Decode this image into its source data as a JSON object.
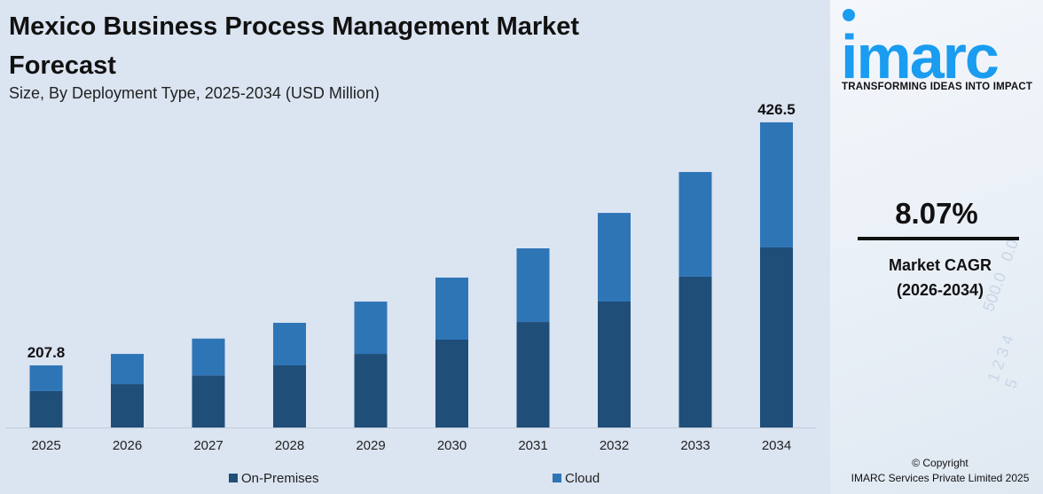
{
  "header": {
    "title": "Mexico Business Process Management Market Forecast",
    "subtitle": "Size, By Deployment Type, 2025-2034 (USD Million)"
  },
  "brand": {
    "logo_text": "imarc",
    "tagline": "TRANSFORMING IDEAS INTO IMPACT",
    "logo_color": "#1a9cf0"
  },
  "cagr": {
    "value": "8.07%",
    "label": "Market CAGR",
    "period": "(2026-2034)"
  },
  "copyright": {
    "line1": "© Copyright",
    "line2": "IMARC Services Private Limited 2025"
  },
  "chart_data": {
    "type": "bar",
    "stacked": true,
    "categories": [
      "2025",
      "2026",
      "2027",
      "2028",
      "2029",
      "2030",
      "2031",
      "2032",
      "2033",
      "2034"
    ],
    "series": [
      {
        "name": "On-Premises",
        "color": "#1f4e79",
        "values": [
          121.8,
          128.7,
          135.9,
          146.0,
          155.0,
          168.0,
          184.4,
          202.5,
          225.4,
          251.7
        ]
      },
      {
        "name": "Cloud",
        "color": "#2e75b6",
        "values": [
          86.0,
          89.4,
          96.0,
          100.1,
          110.2,
          118.8,
          128.7,
          142.5,
          156.4,
          174.8
        ]
      }
    ],
    "data_labels": [
      {
        "category": "2025",
        "text": "207.8"
      },
      {
        "category": "2034",
        "text": "426.5"
      }
    ],
    "xlabel": "",
    "ylabel": "",
    "grid": false,
    "legend": "bottom"
  }
}
